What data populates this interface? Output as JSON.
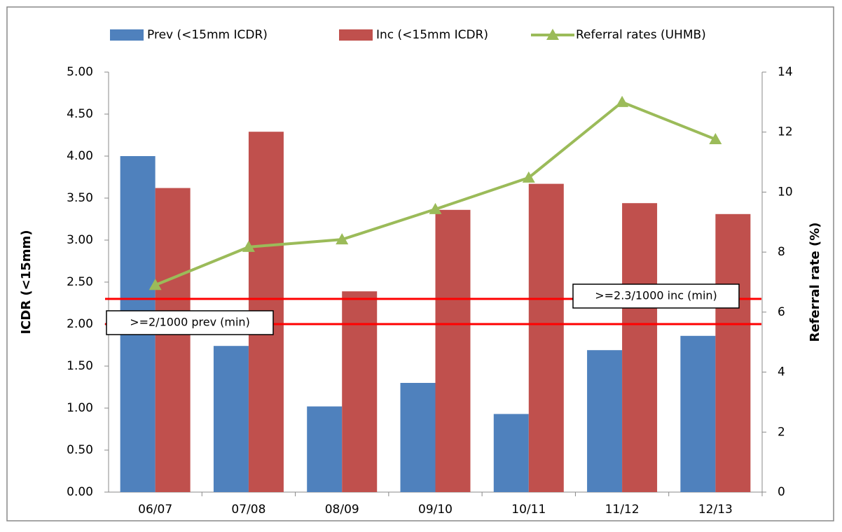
{
  "chart_data": {
    "type": "bar",
    "categories": [
      "06/07",
      "07/08",
      "08/09",
      "09/10",
      "10/11",
      "11/12",
      "12/13"
    ],
    "series": [
      {
        "name": "Prev (<15mm ICDR)",
        "color": "#4f81bd",
        "type": "bar",
        "values": [
          4.0,
          1.74,
          1.02,
          1.3,
          0.93,
          1.69,
          1.86
        ]
      },
      {
        "name": "Inc (<15mm ICDR)",
        "color": "#c0504d",
        "type": "bar",
        "values": [
          3.62,
          4.29,
          2.39,
          3.36,
          3.67,
          3.44,
          3.31
        ]
      },
      {
        "name": "Referral rates (UHMB)",
        "color": "#9bbb59",
        "type": "line",
        "axis": "y2",
        "values": [
          6.9,
          8.17,
          8.42,
          9.43,
          10.48,
          13.0,
          11.76
        ]
      }
    ],
    "ylabel": "ICDR (<15mm)",
    "y2label": "Referral rate (%)",
    "ylim": [
      0,
      5
    ],
    "yticks": [
      {
        "value": 0,
        "label": "0.00"
      },
      {
        "value": 0.5,
        "label": "0.50"
      },
      {
        "value": 1,
        "label": "1.00"
      },
      {
        "value": 1.5,
        "label": "1.50"
      },
      {
        "value": 2,
        "label": "2.00"
      },
      {
        "value": 2.5,
        "label": "2.50"
      },
      {
        "value": 3,
        "label": "3.00"
      },
      {
        "value": 3.5,
        "label": "3.50"
      },
      {
        "value": 4,
        "label": "4.00"
      },
      {
        "value": 4.5,
        "label": "4.50"
      },
      {
        "value": 5,
        "label": "5.00"
      }
    ],
    "y2lim": [
      0,
      14
    ],
    "y2ticks": [
      0,
      2,
      4,
      6,
      8,
      10,
      12,
      14
    ],
    "grid": false,
    "legend": "top",
    "reference_lines": [
      {
        "label": ">=2/1000 prev (min)",
        "value": 2,
        "color": "#ff0000"
      },
      {
        "label": ">=2.3/1000 inc (min)",
        "value": 2.3,
        "color": "#ff0000"
      }
    ]
  }
}
